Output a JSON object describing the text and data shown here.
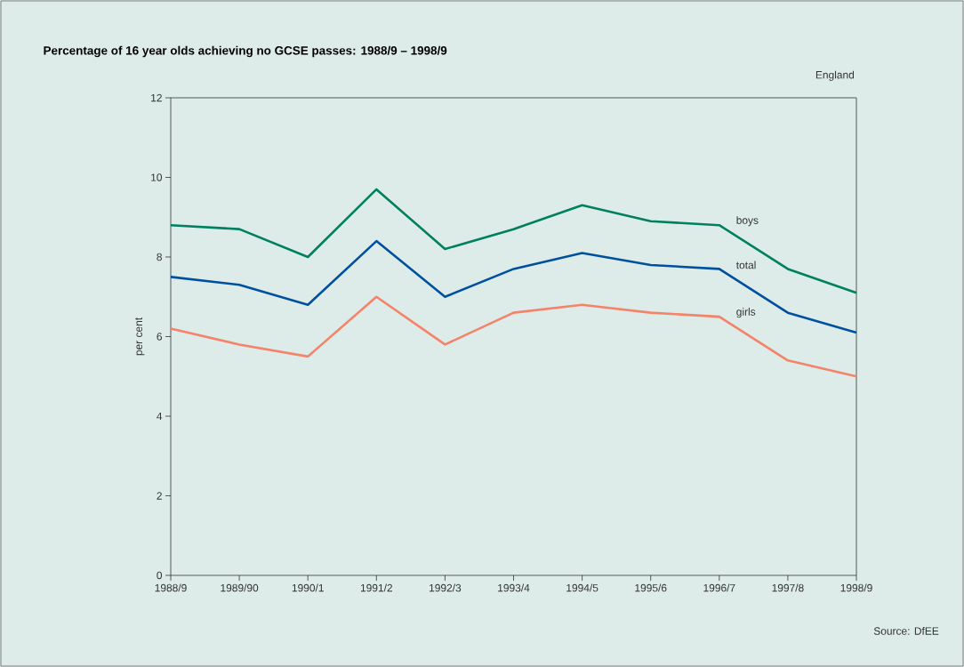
{
  "chart_data": {
    "type": "line",
    "title": "Percentage of 16 year olds achieving no GCSE passes: 1988/9 – 1998/9",
    "ylabel": "per cent",
    "categories": [
      "1988/9",
      "1989/90",
      "1990/1",
      "1991/2",
      "1992/3",
      "1993/4",
      "1994/5",
      "1995/6",
      "1996/7",
      "1997/8",
      "1998/9"
    ],
    "series": [
      {
        "name": "boys",
        "color": "#00805f",
        "values": [
          8.8,
          8.7,
          8.0,
          9.7,
          8.2,
          8.7,
          9.3,
          8.9,
          8.8,
          7.7,
          7.1
        ]
      },
      {
        "name": "total",
        "color": "#0050a0",
        "values": [
          7.5,
          7.3,
          6.8,
          8.4,
          7.0,
          7.7,
          8.1,
          7.8,
          7.7,
          6.6,
          6.1
        ]
      },
      {
        "name": "girls",
        "color": "#f4836a",
        "values": [
          6.2,
          5.8,
          5.5,
          7.0,
          5.8,
          6.6,
          6.8,
          6.6,
          6.5,
          5.4,
          5.0
        ]
      }
    ],
    "ylim": [
      0,
      12
    ],
    "yticks": [
      0,
      2,
      4,
      6,
      8,
      10,
      12
    ],
    "grid": false,
    "legend": false,
    "marker": "none",
    "line_style": "solid",
    "annotations": [
      "England",
      "Source: DfEE"
    ]
  }
}
